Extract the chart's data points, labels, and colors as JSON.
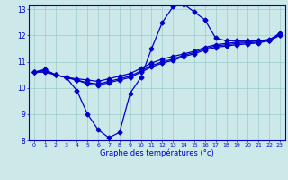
{
  "x": [
    0,
    1,
    2,
    3,
    4,
    5,
    6,
    7,
    8,
    9,
    10,
    11,
    12,
    13,
    14,
    15,
    16,
    17,
    18,
    19,
    20,
    21,
    22,
    23
  ],
  "line1": [
    10.6,
    10.7,
    10.5,
    10.4,
    9.9,
    9.0,
    8.4,
    8.1,
    8.3,
    9.8,
    10.4,
    11.5,
    12.5,
    13.1,
    13.2,
    12.9,
    12.6,
    11.9,
    11.8,
    11.8,
    11.8,
    11.8,
    11.8,
    12.1
  ],
  "line2": [
    10.6,
    10.7,
    10.5,
    10.4,
    10.35,
    10.3,
    10.25,
    10.35,
    10.45,
    10.55,
    10.75,
    10.95,
    11.1,
    11.2,
    11.3,
    11.4,
    11.55,
    11.65,
    11.7,
    11.75,
    11.75,
    11.8,
    11.85,
    12.05
  ],
  "line3": [
    10.6,
    10.65,
    10.5,
    10.4,
    10.3,
    10.2,
    10.15,
    10.25,
    10.35,
    10.45,
    10.65,
    10.85,
    11.0,
    11.1,
    11.25,
    11.35,
    11.5,
    11.6,
    11.65,
    11.7,
    11.72,
    11.75,
    11.82,
    12.02
  ],
  "line4": [
    10.6,
    10.6,
    10.5,
    10.4,
    10.3,
    10.15,
    10.1,
    10.2,
    10.3,
    10.4,
    10.6,
    10.8,
    10.95,
    11.05,
    11.2,
    11.3,
    11.45,
    11.55,
    11.6,
    11.65,
    11.68,
    11.72,
    11.8,
    12.0
  ],
  "line_color": "#0000cd",
  "bg_color": "#cce8e8",
  "grid_color": "#99cccc",
  "ylabel_min": 8,
  "ylabel_max": 13,
  "xlabel": "Graphe des températures (°c)",
  "xtick_labels": [
    "0",
    "1",
    "2",
    "3",
    "4",
    "5",
    "6",
    "7",
    "8",
    "9",
    "10",
    "11",
    "12",
    "13",
    "14",
    "15",
    "16",
    "17",
    "18",
    "19",
    "20",
    "21",
    "22",
    "23"
  ],
  "ytick_labels": [
    "8",
    "9",
    "10",
    "11",
    "12",
    "13"
  ]
}
